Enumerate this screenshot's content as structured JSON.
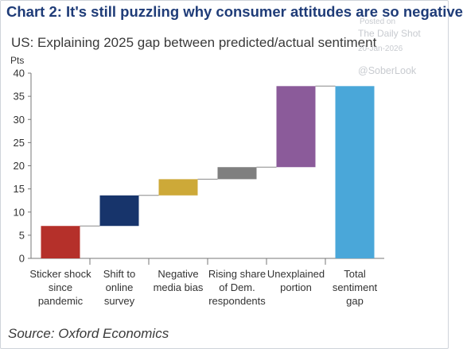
{
  "header": {
    "title": "Chart 2: It's still puzzling why consumer attitudes are so negative",
    "subtitle": "US: Explaining 2025 gap between predicted/actual sentiment"
  },
  "watermark": {
    "posted": "Posted on",
    "site": "The Daily Shot",
    "date": "20-Jan-2026",
    "handle": "@SoberLook"
  },
  "footer": {
    "source": "Source: Oxford Economics"
  },
  "chart_data": {
    "type": "bar",
    "subtype": "waterfall",
    "ylabel": "Pts",
    "ylim": [
      0,
      40
    ],
    "yticks": [
      0,
      5,
      10,
      15,
      20,
      25,
      30,
      35,
      40
    ],
    "grid": false,
    "legend": "none",
    "categories": [
      [
        "Sticker shock",
        "since",
        "pandemic"
      ],
      [
        "Shift to",
        "online",
        "survey"
      ],
      [
        "Negative",
        "media bias"
      ],
      [
        "Rising share",
        "of Dem.",
        "respondents"
      ],
      [
        "Unexplained",
        "portion"
      ],
      [
        "Total",
        "sentiment",
        "gap"
      ]
    ],
    "bars": [
      {
        "start": 0,
        "end": 7,
        "color": "#b5302a"
      },
      {
        "start": 7,
        "end": 13.6,
        "color": "#17346b"
      },
      {
        "start": 13.6,
        "end": 17.1,
        "color": "#cda938"
      },
      {
        "start": 17.1,
        "end": 19.7,
        "color": "#7f7f7f"
      },
      {
        "start": 19.7,
        "end": 37.2,
        "color": "#8b5b9a"
      },
      {
        "start": 0,
        "end": 37.2,
        "color": "#4aa7d9"
      }
    ]
  }
}
